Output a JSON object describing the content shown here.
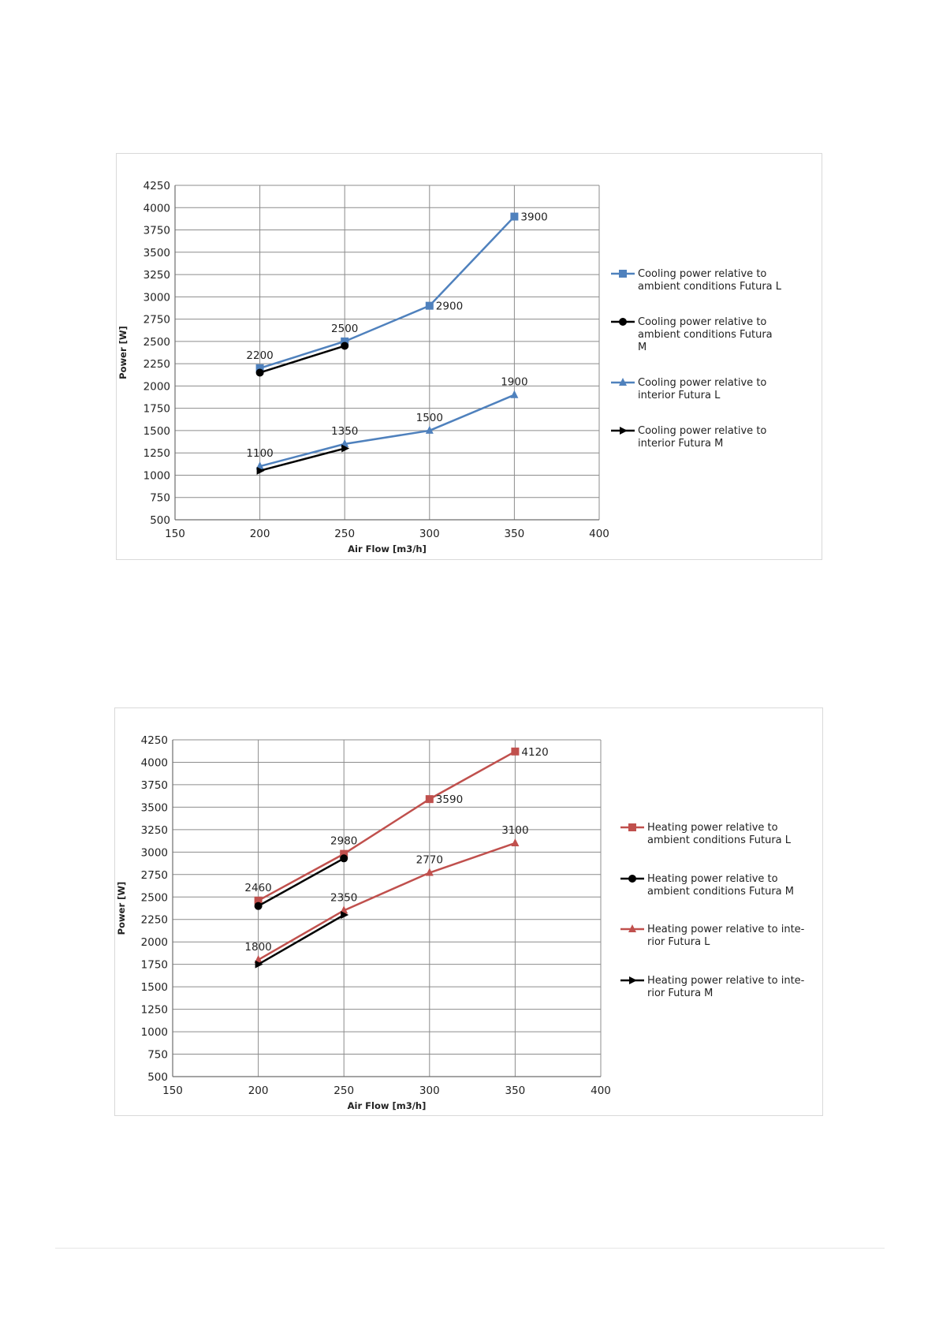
{
  "chart_data": [
    {
      "type": "line",
      "xlabel": "Air Flow [m3/h]",
      "ylabel": "Power [W]",
      "xlim": [
        150,
        400
      ],
      "ylim": [
        500,
        4250
      ],
      "x_ticks": [
        150,
        200,
        250,
        300,
        350,
        400
      ],
      "y_ticks": [
        500,
        750,
        1000,
        1250,
        1500,
        1750,
        2000,
        2250,
        2500,
        2750,
        3000,
        3250,
        3500,
        3750,
        4000,
        4250
      ],
      "grid": true,
      "legend_position": "right",
      "series": [
        {
          "name": "Cooling power relative to ambient conditions Futura L",
          "color": "#4f81bd",
          "marker": "square",
          "x": [
            200,
            250,
            300,
            350
          ],
          "values": [
            2200,
            2500,
            2900,
            3900
          ],
          "labels": [
            "2200",
            "2500",
            "2900",
            "3900"
          ]
        },
        {
          "name": "Cooling power relative to ambient conditions Futura M",
          "color": "#000000",
          "marker": "circle",
          "x": [
            200,
            250
          ],
          "values": [
            2150,
            2450
          ],
          "labels": [
            "",
            ""
          ]
        },
        {
          "name": "Cooling power relative to interior  Futura L",
          "color": "#4f81bd",
          "marker": "triangle",
          "x": [
            200,
            250,
            300,
            350
          ],
          "values": [
            1100,
            1350,
            1500,
            1900
          ],
          "labels": [
            "1100",
            "1350",
            "1500",
            "1900"
          ]
        },
        {
          "name": "Cooling power relative to interior Futura M",
          "color": "#000000",
          "marker": "arrow",
          "x": [
            200,
            250
          ],
          "values": [
            1050,
            1300
          ],
          "labels": [
            "",
            ""
          ]
        }
      ]
    },
    {
      "type": "line",
      "xlabel": "Air Flow [m3/h]",
      "ylabel": "Power [W]",
      "xlim": [
        150,
        400
      ],
      "ylim": [
        500,
        4250
      ],
      "x_ticks": [
        150,
        200,
        250,
        300,
        350,
        400
      ],
      "y_ticks": [
        500,
        750,
        1000,
        1250,
        1500,
        1750,
        2000,
        2250,
        2500,
        2750,
        3000,
        3250,
        3500,
        3750,
        4000,
        4250
      ],
      "grid": true,
      "legend_position": "right",
      "series": [
        {
          "name": "Heating power relative to ambient conditions Futura L",
          "color": "#c0504d",
          "marker": "square",
          "x": [
            200,
            250,
            300,
            350
          ],
          "values": [
            2460,
            2980,
            3590,
            4120
          ],
          "labels": [
            "2460",
            "2980",
            "3590",
            "4120"
          ]
        },
        {
          "name": "Heating power relative to ambient conditions Futura M",
          "color": "#000000",
          "marker": "circle",
          "x": [
            200,
            250
          ],
          "values": [
            2400,
            2930
          ],
          "labels": [
            "",
            ""
          ]
        },
        {
          "name": "Heating power relative to inte- rior  Futura L",
          "color": "#c0504d",
          "marker": "triangle",
          "x": [
            200,
            250,
            300,
            350
          ],
          "values": [
            1800,
            2350,
            2770,
            3100
          ],
          "labels": [
            "1800",
            "2350",
            "2770",
            "3100"
          ]
        },
        {
          "name": "Heating power relative to inte- rior Futura M",
          "color": "#000000",
          "marker": "arrow",
          "x": [
            200,
            250
          ],
          "values": [
            1750,
            2300
          ],
          "labels": [
            "",
            ""
          ]
        }
      ]
    }
  ],
  "legend_text": {
    "cooling": [
      [
        "Cooling power relative to",
        "ambient conditions Futura L"
      ],
      [
        "Cooling power relative to",
        "ambient conditions Futura",
        "M"
      ],
      [
        "Cooling power relative to",
        "interior  Futura L"
      ],
      [
        "Cooling power relative to",
        "interior Futura M"
      ]
    ],
    "heating": [
      [
        "Heating power relative to",
        "ambient conditions Futura L"
      ],
      [
        "Heating power relative to",
        "ambient conditions Futura M"
      ],
      [
        "Heating power relative to inte-",
        "rior  Futura L"
      ],
      [
        "Heating power relative to inte-",
        "rior Futura M"
      ]
    ]
  }
}
